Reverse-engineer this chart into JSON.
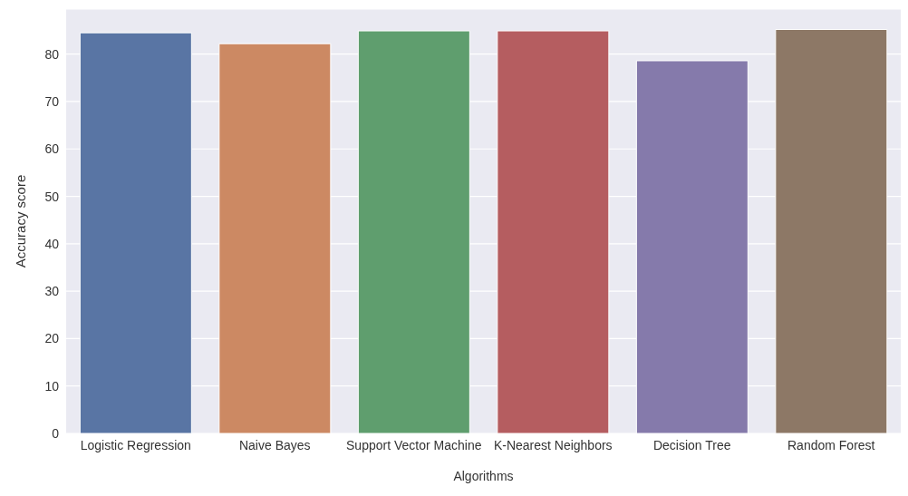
{
  "chart_data": {
    "type": "bar",
    "xlabel": "Algorithms",
    "ylabel": "Accuracy score",
    "categories": [
      "Logistic Regression",
      "Naive Bayes",
      "Support Vector Machine",
      "K-Nearest Neighbors",
      "Decision Tree",
      "Random Forest"
    ],
    "values": [
      84.5,
      82.2,
      84.9,
      84.9,
      78.6,
      85.2
    ],
    "colors": [
      "#5975a4",
      "#cc8963",
      "#5f9e6e",
      "#b55d60",
      "#857aab",
      "#8d7866"
    ],
    "ylim": [
      0,
      89.5
    ],
    "yticks": [
      0,
      10,
      20,
      30,
      40,
      50,
      60,
      70,
      80
    ],
    "grid": "y"
  }
}
